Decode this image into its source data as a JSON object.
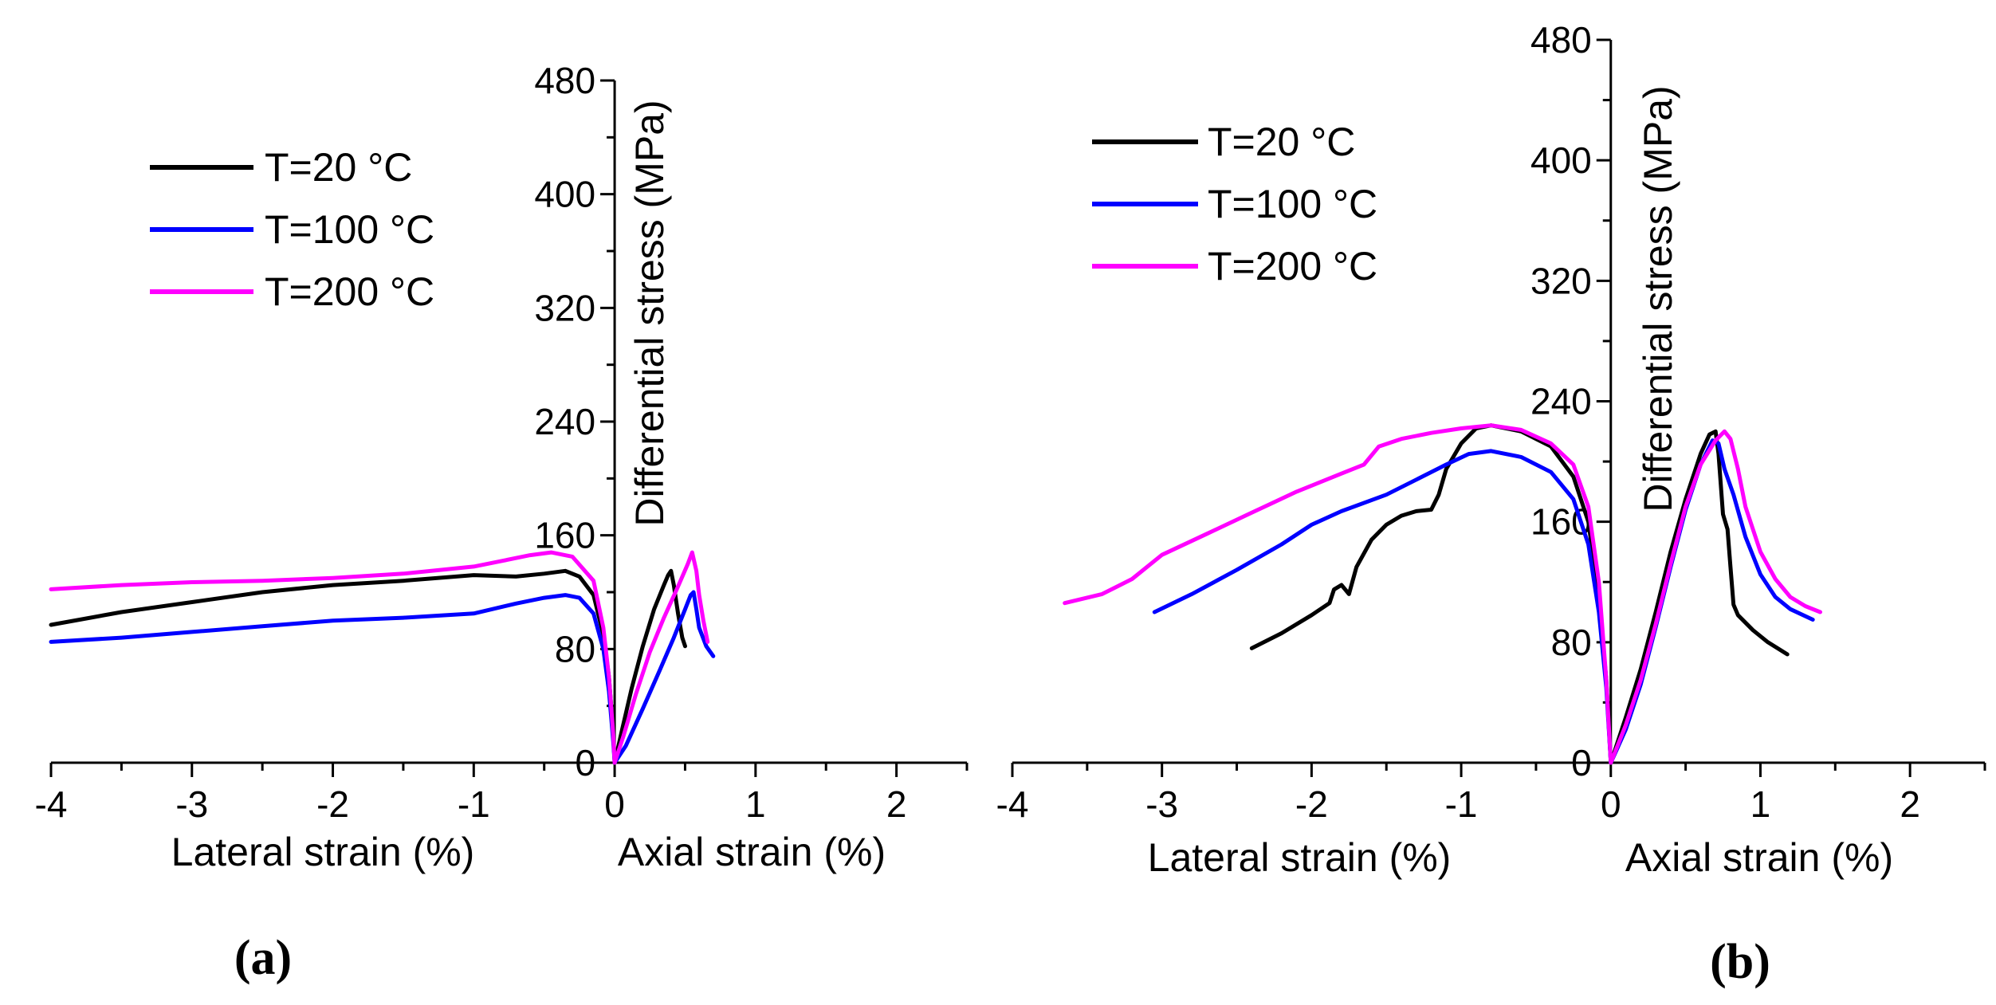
{
  "chart_data": [
    {
      "type": "line",
      "panel_label": "(a)",
      "xlabel_left": "Lateral strain (%)",
      "xlabel_right": "Axial strain (%)",
      "ylabel": "Differential stress (MPa)",
      "xlim": [
        -4,
        2.5
      ],
      "ylim": [
        0,
        480
      ],
      "x_ticks": [
        -4,
        -3,
        -2,
        -1,
        0,
        1,
        2
      ],
      "y_ticks": [
        0,
        80,
        160,
        240,
        320,
        400,
        480
      ],
      "legend_position": "top-left",
      "series": [
        {
          "name": "T=20 °C",
          "color": "#000000",
          "lateral": [
            [
              -4.0,
              97
            ],
            [
              -3.5,
              106
            ],
            [
              -3.0,
              113
            ],
            [
              -2.5,
              120
            ],
            [
              -2.0,
              125
            ],
            [
              -1.5,
              128
            ],
            [
              -1.0,
              132
            ],
            [
              -0.7,
              131
            ],
            [
              -0.5,
              133
            ],
            [
              -0.35,
              135
            ],
            [
              -0.25,
              131
            ],
            [
              -0.15,
              118
            ],
            [
              -0.08,
              90
            ],
            [
              -0.04,
              60
            ],
            [
              -0.01,
              20
            ],
            [
              0,
              0
            ]
          ],
          "axial": [
            [
              0,
              0
            ],
            [
              0.05,
              22
            ],
            [
              0.12,
              52
            ],
            [
              0.2,
              82
            ],
            [
              0.28,
              108
            ],
            [
              0.35,
              125
            ],
            [
              0.38,
              132
            ],
            [
              0.4,
              135
            ],
            [
              0.42,
              125
            ],
            [
              0.45,
              105
            ],
            [
              0.48,
              88
            ],
            [
              0.5,
              82
            ]
          ]
        },
        {
          "name": "T=100 °C",
          "color": "#0000ff",
          "lateral": [
            [
              -4.0,
              85
            ],
            [
              -3.5,
              88
            ],
            [
              -3.0,
              92
            ],
            [
              -2.5,
              96
            ],
            [
              -2.0,
              100
            ],
            [
              -1.5,
              102
            ],
            [
              -1.0,
              105
            ],
            [
              -0.7,
              112
            ],
            [
              -0.5,
              116
            ],
            [
              -0.35,
              118
            ],
            [
              -0.25,
              116
            ],
            [
              -0.15,
              105
            ],
            [
              -0.08,
              80
            ],
            [
              -0.04,
              50
            ],
            [
              -0.01,
              15
            ],
            [
              0,
              0
            ]
          ],
          "axial": [
            [
              0,
              0
            ],
            [
              0.08,
              12
            ],
            [
              0.2,
              38
            ],
            [
              0.32,
              65
            ],
            [
              0.42,
              88
            ],
            [
              0.5,
              108
            ],
            [
              0.54,
              118
            ],
            [
              0.56,
              120
            ],
            [
              0.58,
              108
            ],
            [
              0.6,
              95
            ],
            [
              0.65,
              82
            ],
            [
              0.7,
              75
            ]
          ]
        },
        {
          "name": "T=200 °C",
          "color": "#ff00ff",
          "lateral": [
            [
              -4.0,
              122
            ],
            [
              -3.5,
              125
            ],
            [
              -3.0,
              127
            ],
            [
              -2.5,
              128
            ],
            [
              -2.0,
              130
            ],
            [
              -1.5,
              133
            ],
            [
              -1.0,
              138
            ],
            [
              -0.8,
              142
            ],
            [
              -0.6,
              146
            ],
            [
              -0.45,
              148
            ],
            [
              -0.3,
              145
            ],
            [
              -0.15,
              128
            ],
            [
              -0.08,
              95
            ],
            [
              -0.04,
              60
            ],
            [
              -0.01,
              20
            ],
            [
              0,
              0
            ]
          ],
          "axial": [
            [
              0,
              0
            ],
            [
              0.06,
              18
            ],
            [
              0.15,
              48
            ],
            [
              0.25,
              78
            ],
            [
              0.35,
              102
            ],
            [
              0.45,
              124
            ],
            [
              0.52,
              140
            ],
            [
              0.55,
              148
            ],
            [
              0.58,
              135
            ],
            [
              0.6,
              118
            ],
            [
              0.63,
              100
            ],
            [
              0.66,
              85
            ]
          ]
        }
      ]
    },
    {
      "type": "line",
      "panel_label": "(b)",
      "xlabel_left": "Lateral strain (%)",
      "xlabel_right": "Axial strain (%)",
      "ylabel": "Differential stress (MPa)",
      "xlim": [
        -4,
        2.5
      ],
      "ylim": [
        0,
        480
      ],
      "x_ticks": [
        -4,
        -3,
        -2,
        -1,
        0,
        1,
        2
      ],
      "y_ticks": [
        0,
        80,
        160,
        240,
        320,
        400,
        480
      ],
      "legend_position": "top-left",
      "series": [
        {
          "name": "T=20 °C",
          "color": "#000000",
          "lateral": [
            [
              -2.4,
              76
            ],
            [
              -2.2,
              86
            ],
            [
              -2.0,
              98
            ],
            [
              -1.88,
              106
            ],
            [
              -1.85,
              115
            ],
            [
              -1.8,
              118
            ],
            [
              -1.75,
              112
            ],
            [
              -1.7,
              130
            ],
            [
              -1.6,
              148
            ],
            [
              -1.5,
              158
            ],
            [
              -1.4,
              164
            ],
            [
              -1.3,
              167
            ],
            [
              -1.2,
              168
            ],
            [
              -1.15,
              178
            ],
            [
              -1.1,
              195
            ],
            [
              -1.0,
              212
            ],
            [
              -0.9,
              222
            ],
            [
              -0.8,
              224
            ],
            [
              -0.6,
              220
            ],
            [
              -0.4,
              210
            ],
            [
              -0.25,
              190
            ],
            [
              -0.15,
              160
            ],
            [
              -0.08,
              110
            ],
            [
              -0.03,
              55
            ],
            [
              0,
              0
            ]
          ],
          "axial": [
            [
              0,
              0
            ],
            [
              0.1,
              30
            ],
            [
              0.2,
              62
            ],
            [
              0.3,
              100
            ],
            [
              0.4,
              140
            ],
            [
              0.5,
              175
            ],
            [
              0.6,
              205
            ],
            [
              0.66,
              218
            ],
            [
              0.7,
              220
            ],
            [
              0.72,
              205
            ],
            [
              0.75,
              165
            ],
            [
              0.78,
              155
            ],
            [
              0.8,
              130
            ],
            [
              0.82,
              105
            ],
            [
              0.85,
              98
            ],
            [
              0.95,
              88
            ],
            [
              1.05,
              80
            ],
            [
              1.18,
              72
            ]
          ]
        },
        {
          "name": "T=100 °C",
          "color": "#0000ff",
          "lateral": [
            [
              -3.05,
              100
            ],
            [
              -2.8,
              112
            ],
            [
              -2.5,
              128
            ],
            [
              -2.2,
              145
            ],
            [
              -2.0,
              158
            ],
            [
              -1.8,
              167
            ],
            [
              -1.5,
              178
            ],
            [
              -1.3,
              188
            ],
            [
              -1.1,
              198
            ],
            [
              -0.95,
              205
            ],
            [
              -0.8,
              207
            ],
            [
              -0.6,
              203
            ],
            [
              -0.4,
              193
            ],
            [
              -0.25,
              175
            ],
            [
              -0.15,
              145
            ],
            [
              -0.08,
              100
            ],
            [
              -0.03,
              50
            ],
            [
              0,
              0
            ]
          ],
          "axial": [
            [
              0,
              0
            ],
            [
              0.1,
              22
            ],
            [
              0.2,
              52
            ],
            [
              0.3,
              90
            ],
            [
              0.4,
              130
            ],
            [
              0.5,
              168
            ],
            [
              0.6,
              198
            ],
            [
              0.68,
              214
            ],
            [
              0.72,
              212
            ],
            [
              0.76,
              195
            ],
            [
              0.82,
              178
            ],
            [
              0.9,
              150
            ],
            [
              1.0,
              125
            ],
            [
              1.1,
              110
            ],
            [
              1.2,
              102
            ],
            [
              1.35,
              95
            ]
          ]
        },
        {
          "name": "T=200 °C",
          "color": "#ff00ff",
          "lateral": [
            [
              -3.65,
              106
            ],
            [
              -3.4,
              112
            ],
            [
              -3.2,
              122
            ],
            [
              -3.0,
              138
            ],
            [
              -2.7,
              152
            ],
            [
              -2.4,
              166
            ],
            [
              -2.1,
              180
            ],
            [
              -1.8,
              192
            ],
            [
              -1.65,
              198
            ],
            [
              -1.55,
              210
            ],
            [
              -1.4,
              215
            ],
            [
              -1.2,
              219
            ],
            [
              -1.0,
              222
            ],
            [
              -0.8,
              224
            ],
            [
              -0.6,
              221
            ],
            [
              -0.4,
              212
            ],
            [
              -0.25,
              198
            ],
            [
              -0.15,
              170
            ],
            [
              -0.08,
              120
            ],
            [
              -0.03,
              55
            ],
            [
              0,
              0
            ]
          ],
          "axial": [
            [
              0,
              0
            ],
            [
              0.1,
              25
            ],
            [
              0.2,
              55
            ],
            [
              0.3,
              92
            ],
            [
              0.4,
              132
            ],
            [
              0.5,
              170
            ],
            [
              0.6,
              198
            ],
            [
              0.7,
              214
            ],
            [
              0.76,
              220
            ],
            [
              0.8,
              215
            ],
            [
              0.85,
              195
            ],
            [
              0.9,
              170
            ],
            [
              1.0,
              140
            ],
            [
              1.1,
              122
            ],
            [
              1.2,
              110
            ],
            [
              1.3,
              104
            ],
            [
              1.4,
              100
            ]
          ]
        }
      ]
    }
  ]
}
